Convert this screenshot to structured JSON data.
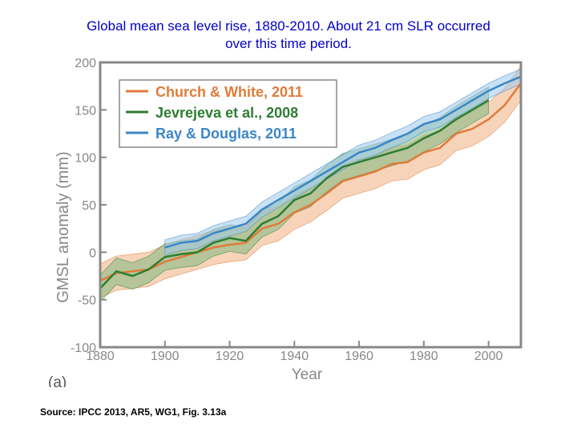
{
  "page": {
    "title_line1": "Global mean sea level rise, 1880-2010. About 21 cm SLR occurred",
    "title_line2": "over this time period.",
    "source": "Source: IPCC 2013, AR5, WG1, Fig. 3.13a",
    "panel_label": "(a)"
  },
  "colors": {
    "title": "#0000cc",
    "church_white": "#e07b39",
    "church_white_band": "#f0b080",
    "jevrejeva": "#2e7d32",
    "jevrejeva_band": "#7fb87f",
    "ray_douglas": "#3a86c8",
    "ray_douglas_band": "#9cc8ec",
    "axis_label": "#888888"
  },
  "chart_data": {
    "type": "line",
    "xlabel": "Year",
    "ylabel": "GMSL anomaly (mm)",
    "xlim": [
      1880,
      2010
    ],
    "ylim": [
      -100,
      200
    ],
    "xticks": [
      1880,
      1900,
      1920,
      1940,
      1960,
      1980,
      2000
    ],
    "yticks": [
      -100,
      -50,
      0,
      50,
      100,
      150,
      200
    ],
    "ytick_labels": [
      "-100",
      "-50",
      "0",
      "50",
      "100",
      "150",
      "200"
    ],
    "grid": false,
    "legend_position": "top-left",
    "series": [
      {
        "name": "Church & White, 2011",
        "x": [
          1880,
          1885,
          1890,
          1895,
          1900,
          1905,
          1910,
          1915,
          1920,
          1925,
          1930,
          1935,
          1940,
          1945,
          1950,
          1955,
          1960,
          1965,
          1970,
          1975,
          1980,
          1985,
          1990,
          1995,
          2000,
          2005,
          2010
        ],
        "y": [
          -30,
          -22,
          -20,
          -18,
          -10,
          -5,
          0,
          5,
          8,
          10,
          25,
          30,
          42,
          50,
          62,
          75,
          80,
          85,
          93,
          95,
          105,
          110,
          125,
          130,
          140,
          155,
          178
        ],
        "band": 18
      },
      {
        "name": "Jevrejeva et al., 2008",
        "x": [
          1880,
          1885,
          1890,
          1895,
          1900,
          1905,
          1910,
          1915,
          1920,
          1925,
          1930,
          1935,
          1940,
          1945,
          1950,
          1955,
          1960,
          1965,
          1970,
          1975,
          1980,
          1985,
          1990,
          1995,
          2000
        ],
        "y": [
          -38,
          -20,
          -25,
          -18,
          -5,
          -2,
          0,
          10,
          15,
          12,
          30,
          38,
          55,
          62,
          78,
          90,
          95,
          100,
          105,
          110,
          120,
          128,
          140,
          150,
          160
        ],
        "band": 14
      },
      {
        "name": "Ray & Douglas, 2011",
        "x": [
          1900,
          1905,
          1910,
          1915,
          1920,
          1925,
          1930,
          1935,
          1940,
          1945,
          1950,
          1955,
          1960,
          1965,
          1970,
          1975,
          1980,
          1985,
          1990,
          1995,
          2000,
          2005,
          2010
        ],
        "y": [
          5,
          10,
          12,
          20,
          25,
          30,
          45,
          55,
          65,
          75,
          85,
          95,
          105,
          110,
          118,
          125,
          135,
          140,
          150,
          160,
          170,
          178,
          185
        ],
        "band": 8
      }
    ]
  }
}
